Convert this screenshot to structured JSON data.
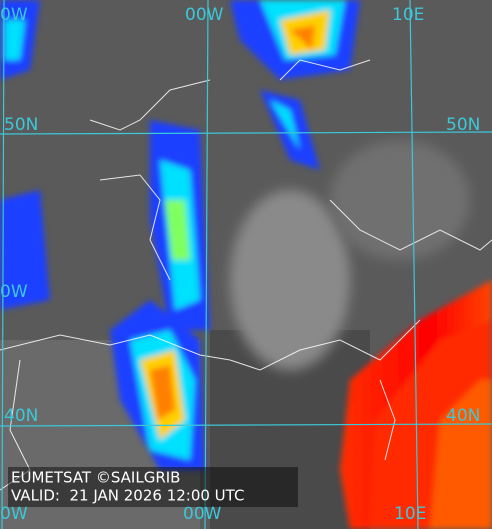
{
  "grid_labels": {
    "top": [
      "0W",
      "00W",
      "10E"
    ],
    "left": [
      "50N",
      "0W",
      "40N"
    ],
    "right": [
      "50N",
      "40N"
    ],
    "bottom": [
      "0W",
      "00W",
      "10E"
    ]
  },
  "caption": {
    "credit": "EUMETSAT ©SAILGRIB",
    "valid": "VALID:  21 JAN 2026 12:00 UTC"
  }
}
